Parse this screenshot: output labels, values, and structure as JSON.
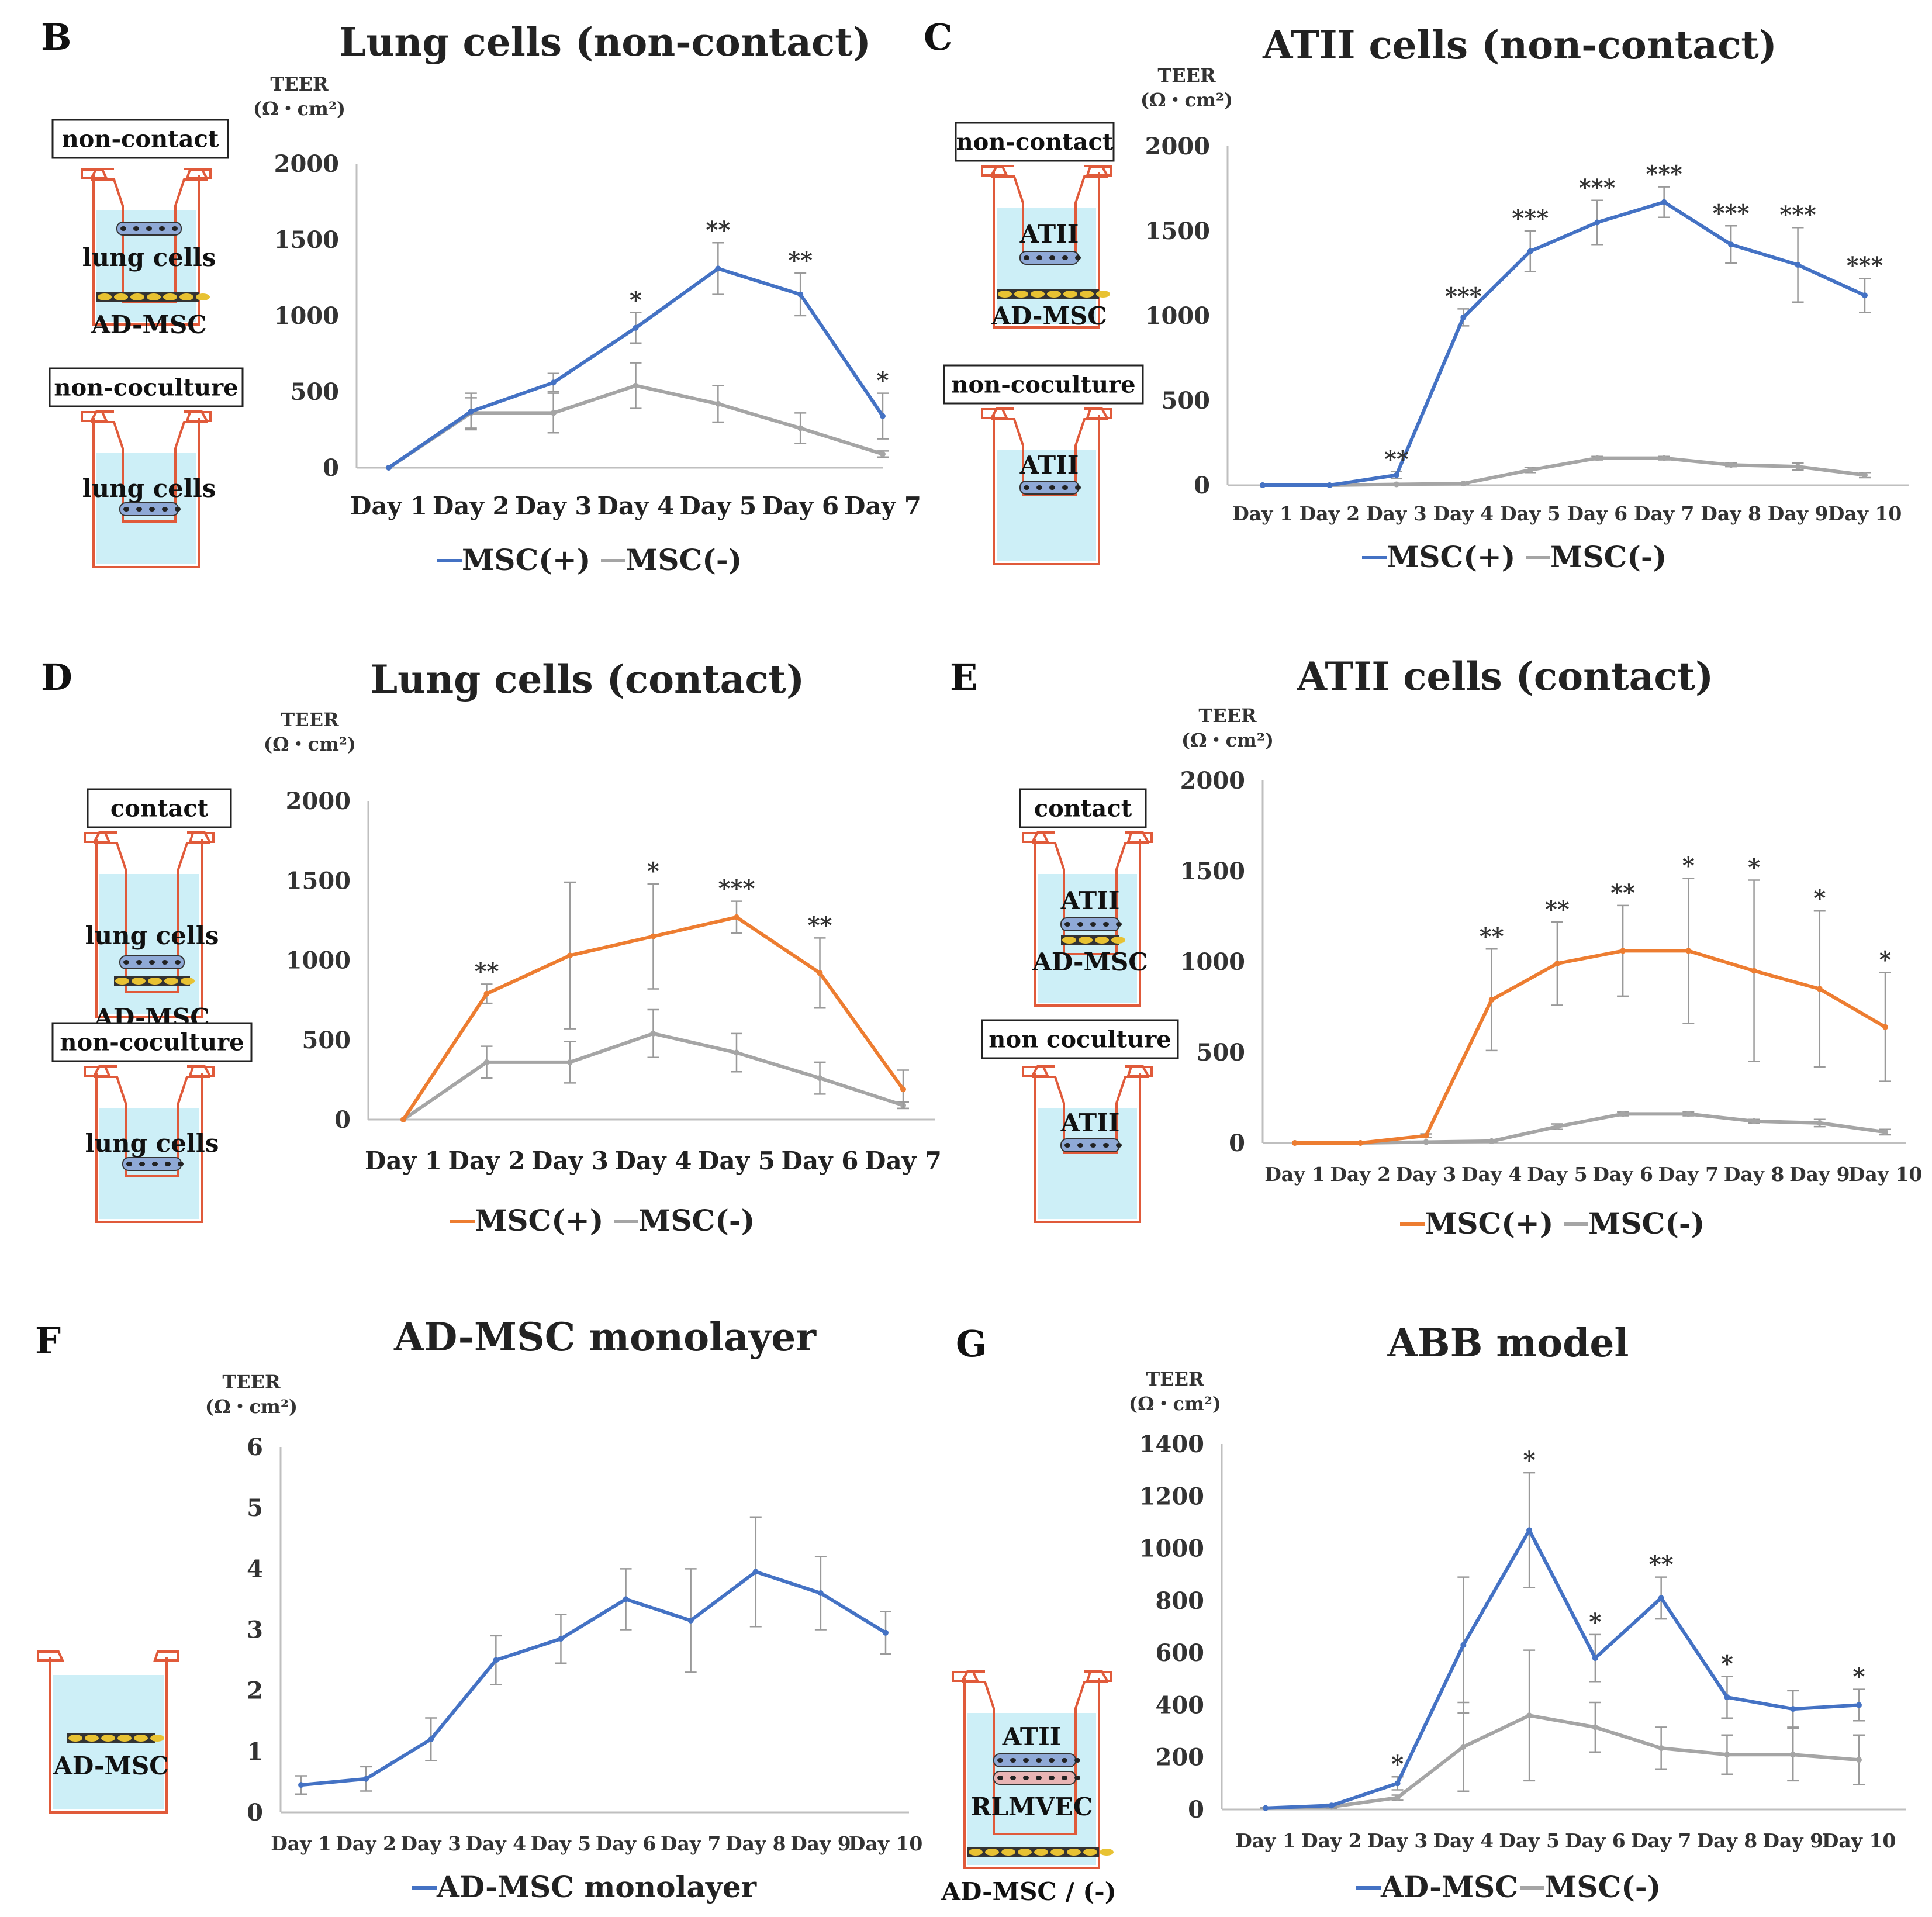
{
  "colors": {
    "blue": "#4472C4",
    "orange": "#ED7D31",
    "gray": "#A5A5A5",
    "axis": "#BFBFBF",
    "well": "#E05A3A",
    "medium": "#CDEFF7"
  },
  "chart_data": [
    {
      "id": "B",
      "panel_label": "B",
      "type": "line",
      "title": "Lung cells (non-contact)",
      "ylabel_line1": "TEER",
      "ylabel_line2": "(Ω・cm²)",
      "ylim": [
        0,
        2000
      ],
      "yticks": [
        "0",
        "500",
        "1000",
        "1500",
        "2000"
      ],
      "ytick_values": [
        0,
        500,
        1000,
        1500,
        2000
      ],
      "categories": [
        "Day 1",
        "Day 2",
        "Day 3",
        "Day 4",
        "Day 5",
        "Day 6",
        "Day 7"
      ],
      "series": [
        {
          "name": "MSC(+)",
          "color": "#4472C4",
          "values": [
            0,
            370,
            560,
            920,
            1310,
            1140,
            340
          ],
          "err": [
            0,
            120,
            60,
            100,
            170,
            140,
            150
          ],
          "marks": [
            "",
            "",
            "",
            "*",
            "**",
            "**",
            "*"
          ]
        },
        {
          "name": "MSC(-)",
          "color": "#A5A5A5",
          "values": [
            0,
            360,
            360,
            540,
            420,
            260,
            90
          ],
          "err": [
            0,
            100,
            130,
            150,
            120,
            100,
            20
          ]
        }
      ],
      "legend": [
        "MSC(+)",
        "MSC(-)"
      ],
      "diagram": {
        "wells": [
          {
            "box": "non-contact",
            "labels": [
              "lung cells",
              "AD-MSC"
            ]
          },
          {
            "box": "non-coculture",
            "labels": [
              "lung cells"
            ]
          }
        ]
      }
    },
    {
      "id": "C",
      "panel_label": "C",
      "type": "line",
      "title": "ATII cells (non-contact)",
      "ylabel_line1": "TEER",
      "ylabel_line2": "(Ω・cm²)",
      "ylim": [
        0,
        2000
      ],
      "yticks": [
        "0",
        "500",
        "1000",
        "1500",
        "2000"
      ],
      "ytick_values": [
        0,
        500,
        1000,
        1500,
        2000
      ],
      "categories": [
        "Day 1",
        "Day 2",
        "Day 3",
        "Day 4",
        "Day 5",
        "Day 6",
        "Day 7",
        "Day 8",
        "Day 9",
        "Day 10"
      ],
      "series": [
        {
          "name": "MSC(+)",
          "color": "#4472C4",
          "values": [
            0,
            0,
            60,
            990,
            1380,
            1550,
            1670,
            1420,
            1300,
            1120
          ],
          "err": [
            0,
            0,
            20,
            50,
            120,
            130,
            90,
            110,
            220,
            100
          ],
          "marks": [
            "",
            "",
            "**",
            "***",
            "***",
            "***",
            "***",
            "***",
            "***",
            "***"
          ]
        },
        {
          "name": "MSC(-)",
          "color": "#A5A5A5",
          "values": [
            0,
            0,
            5,
            10,
            90,
            160,
            160,
            120,
            110,
            60
          ],
          "err": [
            0,
            0,
            2,
            5,
            15,
            10,
            10,
            10,
            20,
            15
          ]
        }
      ],
      "legend": [
        "MSC(+)",
        "MSC(-)"
      ],
      "diagram": {
        "wells": [
          {
            "box": "non-contact",
            "labels": [
              "ATII",
              "AD-MSC"
            ]
          },
          {
            "box": "non-coculture",
            "labels": [
              "ATII"
            ]
          }
        ]
      }
    },
    {
      "id": "D",
      "panel_label": "D",
      "type": "line",
      "title": "Lung cells (contact)",
      "ylabel_line1": "TEER",
      "ylabel_line2": "(Ω・cm²)",
      "ylim": [
        0,
        2000
      ],
      "yticks": [
        "0",
        "500",
        "1000",
        "1500",
        "2000"
      ],
      "ytick_values": [
        0,
        500,
        1000,
        1500,
        2000
      ],
      "categories": [
        "Day 1",
        "Day 2",
        "Day 3",
        "Day 4",
        "Day 5",
        "Day 6",
        "Day 7"
      ],
      "series": [
        {
          "name": "MSC(+)",
          "color": "#ED7D31",
          "values": [
            0,
            790,
            1030,
            1150,
            1270,
            920,
            190
          ],
          "err": [
            0,
            60,
            460,
            330,
            100,
            220,
            120
          ],
          "marks": [
            "",
            "**",
            "",
            "*",
            "***",
            "**",
            ""
          ]
        },
        {
          "name": "MSC(-)",
          "color": "#A5A5A5",
          "values": [
            0,
            360,
            360,
            540,
            420,
            260,
            90
          ],
          "err": [
            0,
            100,
            130,
            150,
            120,
            100,
            20
          ]
        }
      ],
      "legend": [
        "MSC(+)",
        "MSC(-)"
      ],
      "diagram": {
        "wells": [
          {
            "box": "contact",
            "labels": [
              "lung cells",
              "AD-MSC"
            ]
          },
          {
            "box": "non-coculture",
            "labels": [
              "lung cells"
            ]
          }
        ]
      }
    },
    {
      "id": "E",
      "panel_label": "E",
      "type": "line",
      "title": "ATII cells (contact)",
      "ylabel_line1": "TEER",
      "ylabel_line2": "(Ω・cm²)",
      "ylim": [
        0,
        2000
      ],
      "yticks": [
        "0",
        "500",
        "1000",
        "1500",
        "2000"
      ],
      "ytick_values": [
        0,
        500,
        1000,
        1500,
        2000
      ],
      "categories": [
        "Day 1",
        "Day 2",
        "Day 3",
        "Day 4",
        "Day 5",
        "Day 6",
        "Day 7",
        "Day 8",
        "Day 9",
        "Day 10"
      ],
      "series": [
        {
          "name": "MSC(+)",
          "color": "#ED7D31",
          "values": [
            0,
            0,
            40,
            790,
            990,
            1060,
            1060,
            950,
            850,
            640
          ],
          "err": [
            0,
            0,
            10,
            280,
            230,
            250,
            400,
            500,
            430,
            300
          ],
          "marks": [
            "",
            "",
            "",
            "**",
            "**",
            "**",
            "*",
            "*",
            "*",
            "*"
          ]
        },
        {
          "name": "MSC(-)",
          "color": "#A5A5A5",
          "values": [
            0,
            0,
            5,
            10,
            90,
            160,
            160,
            120,
            110,
            60
          ],
          "err": [
            0,
            0,
            2,
            5,
            15,
            10,
            10,
            10,
            20,
            15
          ]
        }
      ],
      "legend": [
        "MSC(+)",
        "MSC(-)"
      ],
      "diagram": {
        "wells": [
          {
            "box": "contact",
            "labels": [
              "ATII",
              "AD-MSC"
            ]
          },
          {
            "box": "non coculture",
            "labels": [
              "ATII"
            ]
          }
        ]
      }
    },
    {
      "id": "F",
      "panel_label": "F",
      "type": "line",
      "title": "AD-MSC monolayer",
      "ylabel_line1": "TEER",
      "ylabel_line2": "(Ω・cm²)",
      "ylim": [
        0,
        6
      ],
      "yticks": [
        "0",
        "1",
        "2",
        "3",
        "4",
        "5",
        "6"
      ],
      "ytick_values": [
        0,
        1,
        2,
        3,
        4,
        5,
        6
      ],
      "categories": [
        "Day 1",
        "Day 2",
        "Day 3",
        "Day 4",
        "Day 5",
        "Day 6",
        "Day 7",
        "Day 8",
        "Day 9",
        "Day 10"
      ],
      "series": [
        {
          "name": "AD-MSC monolayer",
          "color": "#4472C4",
          "values": [
            0.45,
            0.55,
            1.2,
            2.5,
            2.85,
            3.5,
            3.15,
            3.95,
            3.6,
            2.95
          ],
          "err": [
            0.15,
            0.2,
            0.35,
            0.4,
            0.4,
            0.5,
            0.85,
            0.9,
            0.6,
            0.35
          ]
        }
      ],
      "legend": [
        "AD-MSC monolayer"
      ],
      "diagram": {
        "wells": [
          {
            "box": "",
            "labels": [
              "AD-MSC"
            ]
          }
        ]
      }
    },
    {
      "id": "G",
      "panel_label": "G",
      "type": "line",
      "title": "ABB model",
      "ylabel_line1": "TEER",
      "ylabel_line2": "(Ω・cm²)",
      "ylim": [
        0,
        1400
      ],
      "yticks": [
        "0",
        "200",
        "400",
        "600",
        "800",
        "1000",
        "1200",
        "1400"
      ],
      "ytick_values": [
        0,
        200,
        400,
        600,
        800,
        1000,
        1200,
        1400
      ],
      "categories": [
        "Day 1",
        "Day 2",
        "Day 3",
        "Day 4",
        "Day 5",
        "Day 6",
        "Day 7",
        "Day 8",
        "Day 9",
        "Day 10"
      ],
      "series": [
        {
          "name": "AD-MSC",
          "color": "#4472C4",
          "values": [
            5,
            15,
            100,
            630,
            1070,
            580,
            810,
            430,
            385,
            400
          ],
          "err": [
            2,
            5,
            25,
            260,
            220,
            90,
            80,
            80,
            70,
            60
          ],
          "marks": [
            "",
            "",
            "*",
            "",
            "*",
            "*",
            "**",
            "*",
            "",
            "*"
          ]
        },
        {
          "name": "MSC(-)",
          "color": "#A5A5A5",
          "values": [
            5,
            10,
            45,
            240,
            360,
            315,
            235,
            210,
            210,
            190
          ],
          "err": [
            2,
            5,
            10,
            170,
            250,
            95,
            80,
            75,
            100,
            95
          ]
        }
      ],
      "legend": [
        "AD-MSC",
        "MSC(-)"
      ],
      "diagram": {
        "wells": [
          {
            "box": "",
            "labels": [
              "ATII",
              "RLMVEC",
              "AD-MSC / (-)"
            ]
          }
        ]
      }
    }
  ]
}
